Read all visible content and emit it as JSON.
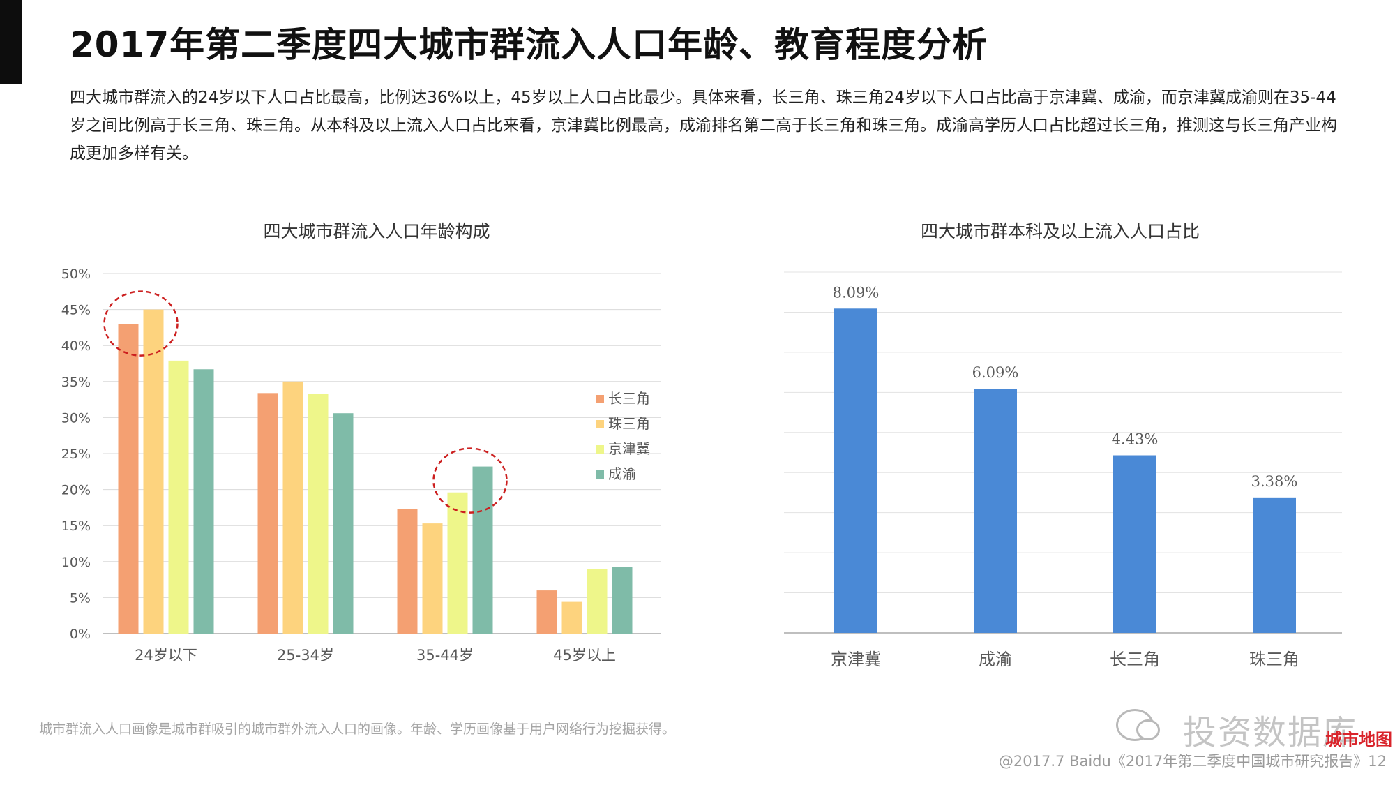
{
  "page": {
    "title": "2017年第二季度四大城市群流入人口年龄、教育程度分析",
    "summary": "四大城市群流入的24岁以下人口占比最高，比例达36%以上，45岁以上人口占比最少。具体来看，长三角、珠三角24岁以下人口占比高于京津冀、成渝，而京津冀成渝则在35-44岁之间比例高于长三角、珠三角。从本科及以上流入人口占比来看，京津冀比例最高，成渝排名第二高于长三角和珠三角。成渝高学历人口占比超过长三角，推测这与长三角产业构成更加多样有关。",
    "footnote": "城市群流入人口画像是城市群吸引的城市群外流入人口的画像。年龄、学历画像基于用户网络行为挖掘获得。",
    "copyright": "@2017.7 Baidu《2017年第二季度中国城市研究报告》12",
    "watermark_text": "投资数据库",
    "watermark_logo": "城市地图"
  },
  "colors": {
    "长三角": "#F4A072",
    "珠三角": "#FDD37E",
    "京津冀": "#EEF68A",
    "成渝": "#7FBBA8",
    "bar_blue": "#4A89D6",
    "highlight_circle": "#CC1F1F"
  },
  "chart_data": [
    {
      "type": "bar",
      "title": "四大城市群流入人口年龄构成",
      "categories": [
        "24岁以下",
        "25-34岁",
        "35-44岁",
        "45岁以上"
      ],
      "series": [
        {
          "name": "长三角",
          "values": [
            43.0,
            33.4,
            17.3,
            6.0
          ]
        },
        {
          "name": "珠三角",
          "values": [
            45.0,
            35.0,
            15.3,
            4.4
          ]
        },
        {
          "name": "京津冀",
          "values": [
            37.9,
            33.3,
            19.6,
            9.0
          ]
        },
        {
          "name": "成渝",
          "values": [
            36.7,
            30.6,
            23.2,
            9.3
          ]
        }
      ],
      "ylim": [
        0,
        50
      ],
      "yticks": [
        "0%",
        "5%",
        "10%",
        "15%",
        "20%",
        "25%",
        "30%",
        "35%",
        "40%",
        "45%",
        "50%"
      ],
      "grid": true,
      "legend_position": "right",
      "highlights": [
        {
          "category": "24岁以下",
          "series": [
            "长三角",
            "珠三角"
          ]
        },
        {
          "category": "35-44岁",
          "series": [
            "京津冀",
            "成渝"
          ]
        }
      ]
    },
    {
      "type": "bar",
      "title": "四大城市群本科及以上流入人口占比",
      "categories": [
        "京津冀",
        "成渝",
        "长三角",
        "珠三角"
      ],
      "values": [
        8.09,
        6.09,
        4.43,
        3.38
      ],
      "data_labels": [
        "8.09%",
        "6.09%",
        "4.43%",
        "3.38%"
      ],
      "ylim": [
        0,
        9
      ],
      "grid": true,
      "legend": false
    }
  ]
}
